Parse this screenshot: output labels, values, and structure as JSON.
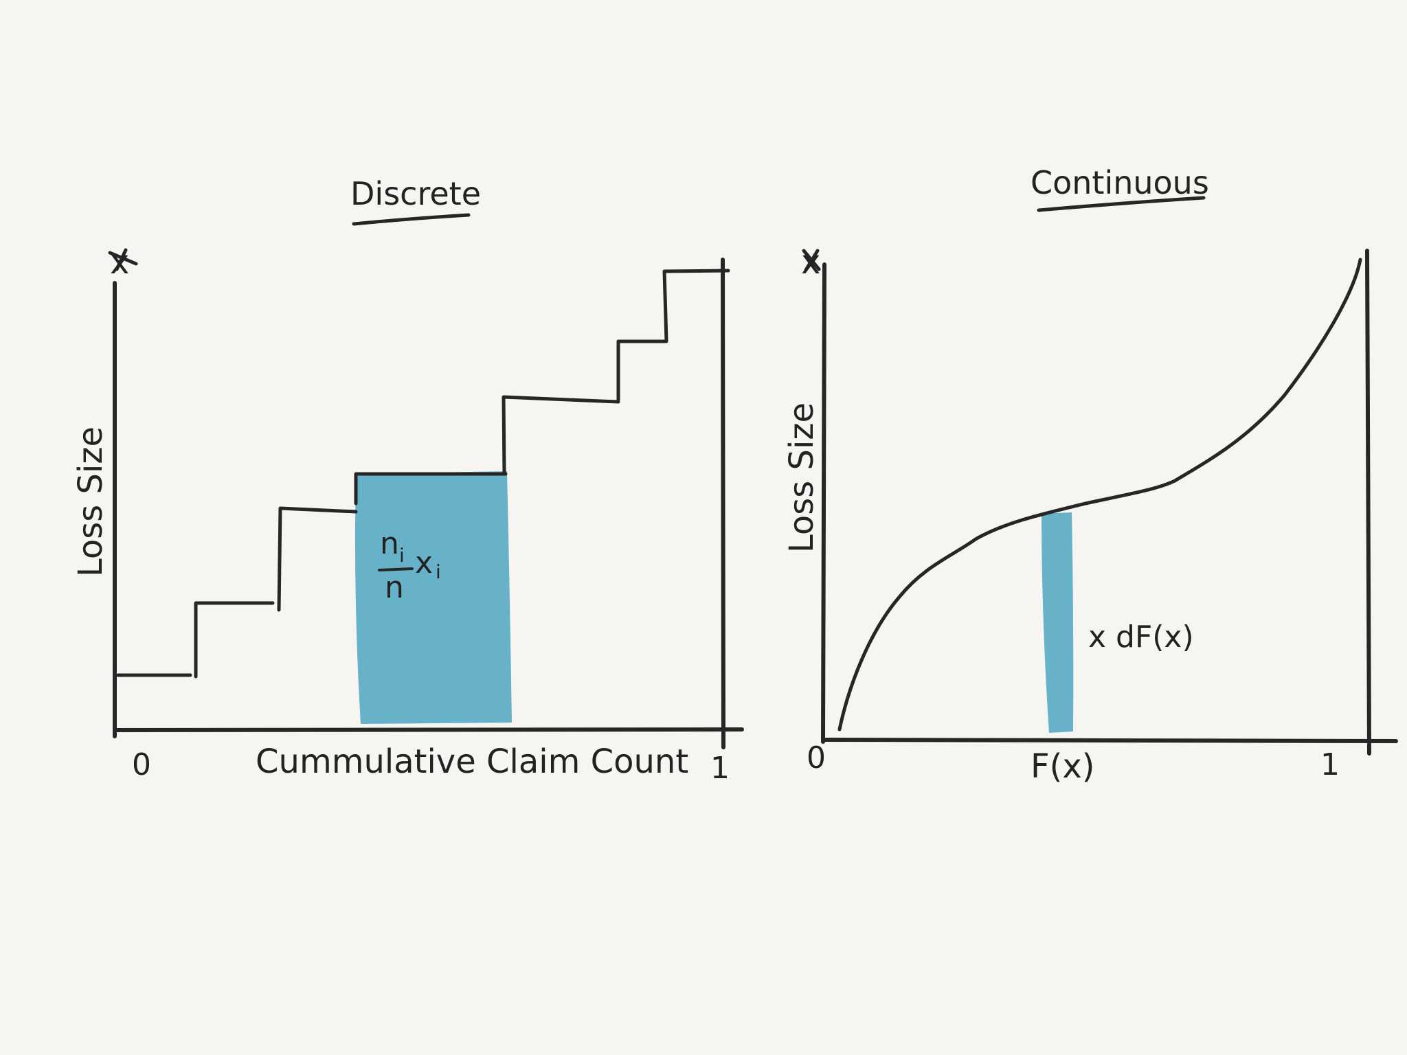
{
  "colors": {
    "background": "#f6f5f2",
    "ink": "#262626",
    "shade": "#67b2c9"
  },
  "discrete": {
    "title": "Discrete",
    "y_axis_label": "Loss Size",
    "y_axis_symbol": "x",
    "x_axis_label": "Cummulative Claim Count",
    "x_tick_start": "0",
    "x_tick_end": "1",
    "shaded_label_numerator": "n",
    "shaded_label_numerator_sub": "i",
    "shaded_label_denominator": "n",
    "shaded_label_var": "x",
    "shaded_label_var_sub": "i"
  },
  "continuous": {
    "title": "Continuous",
    "y_axis_label": "Loss Size",
    "y_axis_symbol": "x",
    "x_axis_label": "F(x)",
    "x_tick_start": "0",
    "x_tick_end": "1",
    "strip_label": "x dF(x)"
  }
}
